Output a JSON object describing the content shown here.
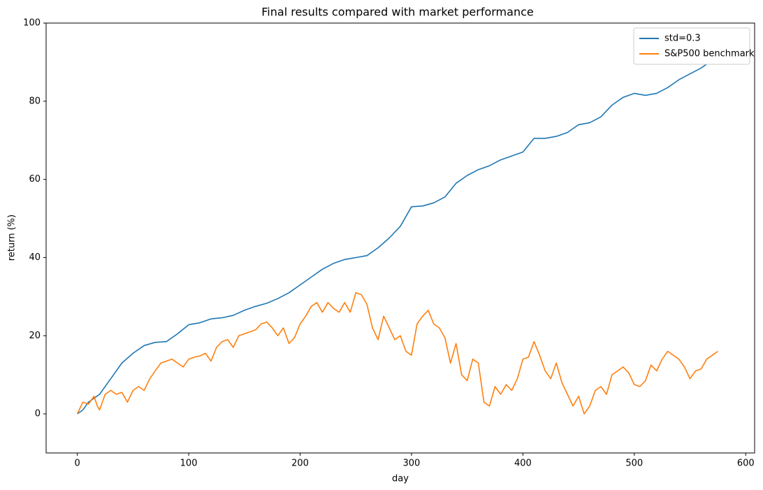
{
  "chart_data": {
    "type": "line",
    "title": "Final results compared with market performance",
    "xlabel": "day",
    "ylabel": "return (%)",
    "xlim": [
      -28,
      608
    ],
    "ylim": [
      -10,
      100
    ],
    "xticks": [
      0,
      100,
      200,
      300,
      400,
      500,
      600
    ],
    "yticks": [
      0,
      20,
      40,
      60,
      80,
      100
    ],
    "legend": "upper right",
    "series": [
      {
        "name": "std=0.3",
        "color": "#1f77b4",
        "x": [
          0,
          5,
          10,
          20,
          30,
          40,
          50,
          60,
          70,
          80,
          90,
          100,
          110,
          120,
          130,
          140,
          150,
          160,
          170,
          180,
          190,
          200,
          210,
          220,
          230,
          240,
          250,
          260,
          270,
          280,
          290,
          300,
          310,
          320,
          330,
          340,
          350,
          360,
          370,
          380,
          390,
          400,
          410,
          420,
          430,
          440,
          450,
          460,
          470,
          480,
          490,
          500,
          510,
          520,
          530,
          540,
          550,
          560,
          565
        ],
        "values": [
          0,
          1,
          3,
          5,
          9,
          13,
          15.5,
          17.5,
          18.3,
          18.5,
          20.5,
          22.8,
          23.3,
          24.3,
          24.6,
          25.2,
          26.5,
          27.5,
          28.3,
          29.5,
          31,
          33,
          35,
          37,
          38.5,
          39.5,
          40,
          40.5,
          42.5,
          45,
          48,
          53,
          53.2,
          54,
          55.5,
          59,
          61,
          62.5,
          63.5,
          65,
          66,
          67,
          70.5,
          70.5,
          71,
          72,
          74,
          74.5,
          76,
          79,
          81,
          82,
          81.5,
          82,
          83.5,
          85.5,
          87,
          88.5,
          89.5
        ]
      },
      {
        "name": "S&P500 benchmark",
        "color": "#ff7f0e",
        "x": [
          0,
          5,
          10,
          15,
          18,
          20,
          25,
          30,
          35,
          40,
          45,
          50,
          55,
          60,
          65,
          70,
          75,
          80,
          85,
          90,
          95,
          100,
          105,
          110,
          115,
          120,
          125,
          130,
          135,
          140,
          145,
          150,
          155,
          160,
          165,
          170,
          175,
          180,
          185,
          190,
          195,
          200,
          205,
          210,
          215,
          220,
          225,
          230,
          235,
          240,
          245,
          250,
          255,
          260,
          265,
          270,
          275,
          280,
          285,
          290,
          295,
          300,
          305,
          310,
          315,
          320,
          325,
          330,
          335,
          340,
          345,
          350,
          355,
          360,
          365,
          370,
          375,
          380,
          385,
          390,
          395,
          400,
          405,
          410,
          415,
          420,
          425,
          430,
          435,
          440,
          445,
          450,
          455,
          460,
          465,
          470,
          475,
          480,
          485,
          490,
          495,
          500,
          505,
          510,
          515,
          520,
          525,
          530,
          535,
          540,
          545,
          550,
          555,
          560,
          565,
          570,
          575
        ],
        "values": [
          0,
          3,
          2.5,
          4.5,
          2,
          1,
          5,
          6,
          5,
          5.5,
          3,
          6,
          7,
          6,
          9,
          11,
          13,
          13.5,
          14,
          13,
          12,
          14,
          14.5,
          14.8,
          15.5,
          13.5,
          17,
          18.5,
          19,
          17,
          20,
          20.5,
          21,
          21.5,
          23,
          23.5,
          22,
          20,
          22,
          18,
          19.5,
          23,
          25,
          27.5,
          28.5,
          26,
          28.5,
          27,
          26,
          28.5,
          26,
          31,
          30.5,
          28,
          22,
          19,
          25,
          22,
          19,
          20,
          16,
          15,
          23,
          25,
          26.5,
          23,
          22,
          19.5,
          13,
          18,
          10,
          8.5,
          14,
          13,
          3,
          2,
          7,
          5,
          7.5,
          6,
          9,
          14,
          14.5,
          18.5,
          15,
          11,
          9,
          13,
          8,
          5,
          2,
          4.5,
          0,
          2,
          6,
          7,
          5,
          10,
          11,
          12,
          10.5,
          7.5,
          7,
          8.5,
          12.5,
          11,
          14,
          16,
          15,
          14,
          12,
          9,
          11,
          11.5,
          14,
          15,
          16
        ]
      }
    ]
  }
}
